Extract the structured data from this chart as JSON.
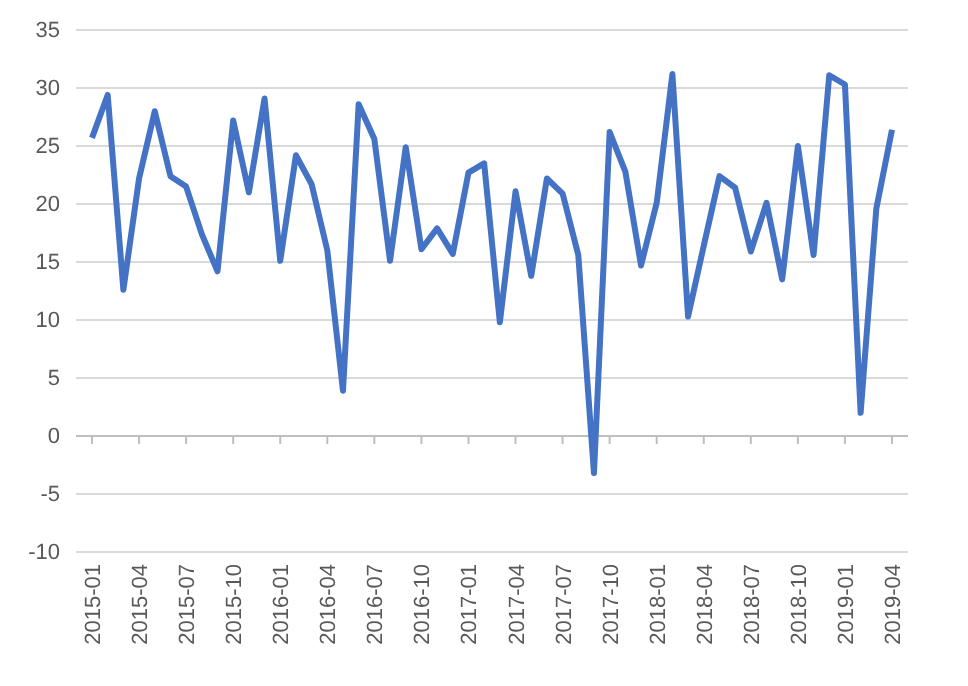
{
  "chart_data": {
    "type": "line",
    "categories": [
      "2015-01",
      null,
      null,
      "2015-04",
      null,
      null,
      "2015-07",
      null,
      null,
      "2015-10",
      null,
      null,
      "2016-01",
      null,
      null,
      "2016-04",
      null,
      null,
      "2016-07",
      null,
      null,
      "2016-10",
      null,
      null,
      "2017-01",
      null,
      null,
      "2017-04",
      null,
      null,
      "2017-07",
      null,
      null,
      "2017-10",
      null,
      null,
      "2018-01",
      null,
      null,
      "2018-04",
      null,
      null,
      "2018-07",
      null,
      null,
      "2018-10",
      null,
      null,
      "2019-01",
      null,
      null,
      "2019-04"
    ],
    "series": [
      {
        "color": "#4472c4",
        "values": [
          25.7,
          29.4,
          12.6,
          22.2,
          28.0,
          22.4,
          21.5,
          17.4,
          14.2,
          27.2,
          21.0,
          29.1,
          15.1,
          24.2,
          21.7,
          16.0,
          3.9,
          28.6,
          25.6,
          15.1,
          24.9,
          16.1,
          17.9,
          15.7,
          22.7,
          23.5,
          9.8,
          21.1,
          13.8,
          22.2,
          20.9,
          15.6,
          -3.2,
          26.2,
          22.8,
          14.7,
          20.1,
          31.2,
          10.3,
          16.4,
          22.4,
          21.4,
          15.9,
          20.1,
          13.5,
          25.0,
          15.6,
          31.1,
          30.3,
          2.0,
          19.6,
          26.4
        ]
      }
    ],
    "ylim": [
      -10,
      35
    ],
    "yticks": [
      -10,
      -5,
      0,
      5,
      10,
      15,
      20,
      25,
      30,
      35
    ],
    "grid": "y",
    "marker": "none",
    "line_style": "solid"
  }
}
